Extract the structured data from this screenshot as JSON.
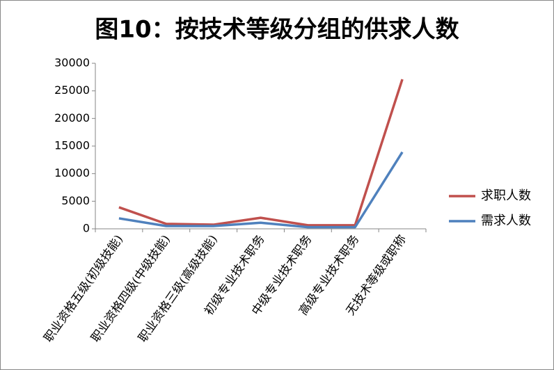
{
  "chart_data": {
    "type": "line",
    "title": "图10：按技术等级分组的供求人数",
    "categories": [
      "职业资格五级(初级技能)",
      "职业资格四级(中级技能)",
      "职业资格三级(高级技能)",
      "初级专业技术职务",
      "中级专业技术职务",
      "高级专业技术职务",
      "无技术等级或职称"
    ],
    "series": [
      {
        "name": "求职人数",
        "color": "#c0504d",
        "values": [
          3900,
          900,
          750,
          2000,
          650,
          650,
          27100
        ]
      },
      {
        "name": "需求人数",
        "color": "#4f81bd",
        "values": [
          1900,
          500,
          500,
          1100,
          300,
          300,
          13900
        ]
      }
    ],
    "ylim": [
      0,
      30000
    ],
    "yticks": [
      0,
      5000,
      10000,
      15000,
      20000,
      25000,
      30000
    ],
    "grid": false,
    "legend": "right"
  }
}
